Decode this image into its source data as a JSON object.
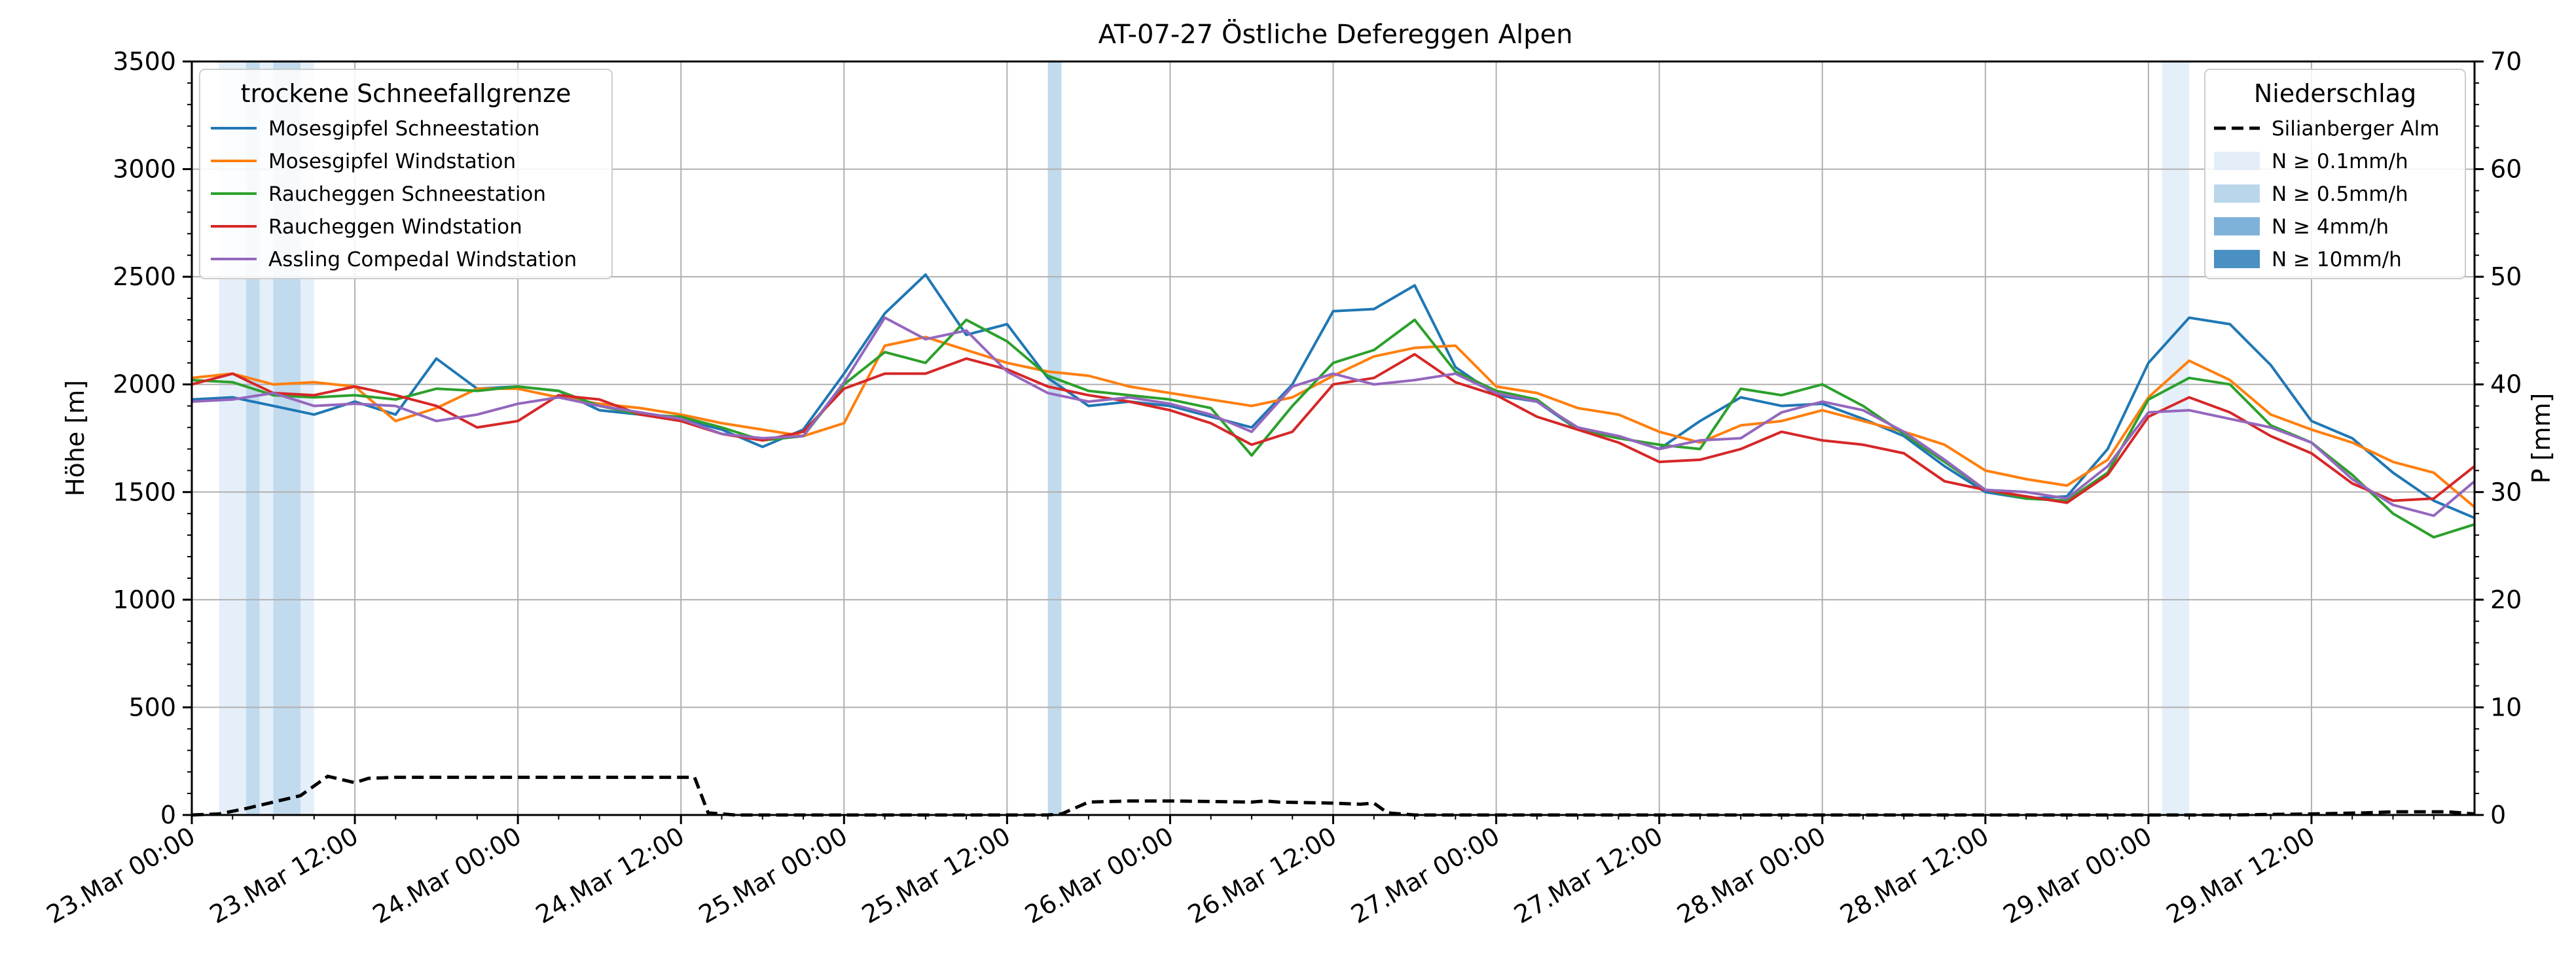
{
  "chart_data": {
    "type": "line",
    "title": "AT-07-27 Östliche Defereggen Alpen",
    "ylabel": "Höhe [m]",
    "ylabel_right": "P [mm]",
    "ylim": [
      0,
      3500
    ],
    "ylim_right": [
      0,
      70
    ],
    "yticks": [
      "0",
      "500",
      "1000",
      "1500",
      "2000",
      "2500",
      "3000",
      "3500"
    ],
    "yticks_right": [
      "0",
      "10",
      "20",
      "30",
      "40",
      "50",
      "60",
      "70"
    ],
    "x_start": "23.Mar 00:00",
    "x_end": "30.Mar 00:00",
    "xticks": [
      "23.Mar 00:00",
      "23.Mar 12:00",
      "24.Mar 00:00",
      "24.Mar 12:00",
      "25.Mar 00:00",
      "25.Mar 12:00",
      "26.Mar 00:00",
      "26.Mar 12:00",
      "27.Mar 00:00",
      "27.Mar 12:00",
      "28.Mar 00:00",
      "28.Mar 12:00",
      "29.Mar 00:00",
      "29.Mar 12:00"
    ],
    "grid": true,
    "legend_left": {
      "title": "trockene Schneefallgrenze",
      "placement": "top-left",
      "entries": [
        "Mosesgipfel Schneestation",
        "Mosesgipfel Windstation",
        "Raucheggen Schneestation",
        "Raucheggen Windstation",
        "Assling Compedal Windstation"
      ]
    },
    "legend_right": {
      "title": "Niederschlag",
      "placement": "top-right",
      "entries": [
        "Silianberger Alm",
        "N ≥ 0.1mm/h",
        "N ≥ 0.5mm/h",
        "N ≥ 4mm/h",
        "N ≥ 10mm/h"
      ],
      "colors": [
        "#000000",
        "#e2edf8",
        "#bad6eb",
        "#7fb2d9",
        "#4a90c2"
      ]
    },
    "series": [
      {
        "name": "Mosesgipfel Schneestation",
        "color": "#1f77b4",
        "hours": [
          0,
          3,
          6,
          9,
          12,
          15,
          18,
          21,
          24,
          27,
          30,
          33,
          36,
          39,
          42,
          45,
          48,
          51,
          54,
          57,
          60,
          63,
          66,
          69,
          72,
          75,
          78,
          81,
          84,
          87,
          90,
          93,
          96,
          99,
          102,
          105,
          108,
          111,
          114,
          117,
          120,
          123,
          126,
          129,
          132,
          135,
          138,
          141,
          144,
          147,
          150,
          153,
          156,
          159,
          162,
          165,
          168
        ],
        "values": [
          1930,
          1940,
          1900,
          1860,
          1920,
          1860,
          2120,
          1980,
          1990,
          1970,
          1880,
          1860,
          1840,
          1790,
          1710,
          1790,
          2050,
          2330,
          2510,
          2230,
          2280,
          2030,
          1900,
          1920,
          1900,
          1850,
          1800,
          2000,
          2340,
          2350,
          2460,
          2080,
          1950,
          1920,
          1790,
          1760,
          1700,
          1830,
          1940,
          1900,
          1910,
          1840,
          1760,
          1620,
          1500,
          1470,
          1480,
          1700,
          2100,
          2310,
          2280,
          2090,
          1830,
          1750,
          1590,
          1460,
          1380
        ]
      },
      {
        "name": "Mosesgipfel Windstation",
        "color": "#ff7f0e",
        "hours": [
          0,
          3,
          6,
          9,
          12,
          15,
          18,
          21,
          24,
          27,
          30,
          33,
          36,
          39,
          42,
          45,
          48,
          51,
          54,
          57,
          60,
          63,
          66,
          69,
          72,
          75,
          78,
          81,
          84,
          87,
          90,
          93,
          96,
          99,
          102,
          105,
          108,
          111,
          114,
          117,
          120,
          123,
          126,
          129,
          132,
          135,
          138,
          141,
          144,
          147,
          150,
          153,
          156,
          159,
          162,
          165,
          168
        ],
        "values": [
          2030,
          2050,
          2000,
          2010,
          1990,
          1830,
          1890,
          1980,
          1980,
          1940,
          1910,
          1890,
          1860,
          1820,
          1790,
          1760,
          1820,
          2180,
          2220,
          2160,
          2100,
          2060,
          2040,
          1990,
          1960,
          1930,
          1900,
          1940,
          2040,
          2130,
          2170,
          2180,
          1990,
          1960,
          1890,
          1860,
          1780,
          1730,
          1810,
          1830,
          1880,
          1830,
          1780,
          1720,
          1600,
          1560,
          1530,
          1650,
          1940,
          2110,
          2020,
          1860,
          1790,
          1730,
          1640,
          1590,
          1430
        ]
      },
      {
        "name": "Raucheggen Schneestation",
        "color": "#2ca02c",
        "hours": [
          0,
          3,
          6,
          9,
          12,
          15,
          18,
          21,
          24,
          27,
          30,
          33,
          36,
          39,
          42,
          45,
          48,
          51,
          54,
          57,
          60,
          63,
          66,
          69,
          72,
          75,
          78,
          81,
          84,
          87,
          90,
          93,
          96,
          99,
          102,
          105,
          108,
          111,
          114,
          117,
          120,
          123,
          126,
          129,
          132,
          135,
          138,
          141,
          144,
          147,
          150,
          153,
          156,
          159,
          162,
          165,
          168
        ],
        "values": [
          2020,
          2010,
          1950,
          1940,
          1950,
          1930,
          1980,
          1970,
          1990,
          1970,
          1900,
          1860,
          1850,
          1800,
          1740,
          1760,
          2000,
          2150,
          2100,
          2300,
          2200,
          2040,
          1970,
          1950,
          1930,
          1890,
          1670,
          1900,
          2100,
          2160,
          2300,
          2060,
          1970,
          1930,
          1790,
          1750,
          1720,
          1700,
          1980,
          1950,
          2000,
          1900,
          1770,
          1640,
          1510,
          1470,
          1460,
          1590,
          1930,
          2030,
          2000,
          1810,
          1730,
          1580,
          1400,
          1290,
          1350
        ]
      },
      {
        "name": "Raucheggen Windstation",
        "color": "#d62728",
        "hours": [
          0,
          3,
          6,
          9,
          12,
          15,
          18,
          21,
          24,
          27,
          30,
          33,
          36,
          39,
          42,
          45,
          48,
          51,
          54,
          57,
          60,
          63,
          66,
          69,
          72,
          75,
          78,
          81,
          84,
          87,
          90,
          93,
          96,
          99,
          102,
          105,
          108,
          111,
          114,
          117,
          120,
          123,
          126,
          129,
          132,
          135,
          138,
          141,
          144,
          147,
          150,
          153,
          156,
          159,
          162,
          165,
          168
        ],
        "values": [
          2000,
          2050,
          1960,
          1950,
          1990,
          1950,
          1900,
          1800,
          1830,
          1950,
          1930,
          1860,
          1830,
          1770,
          1740,
          1780,
          1980,
          2050,
          2050,
          2120,
          2070,
          1990,
          1950,
          1920,
          1880,
          1820,
          1720,
          1780,
          2000,
          2030,
          2140,
          2010,
          1950,
          1850,
          1790,
          1730,
          1640,
          1650,
          1700,
          1780,
          1740,
          1720,
          1680,
          1550,
          1510,
          1480,
          1450,
          1580,
          1850,
          1940,
          1870,
          1760,
          1680,
          1540,
          1460,
          1470,
          1620
        ]
      },
      {
        "name": "Assling Compedal Windstation",
        "color": "#9467bd",
        "hours": [
          0,
          3,
          6,
          9,
          12,
          15,
          18,
          21,
          24,
          27,
          30,
          33,
          36,
          39,
          42,
          45,
          48,
          51,
          54,
          57,
          60,
          63,
          66,
          69,
          72,
          75,
          78,
          81,
          84,
          87,
          90,
          93,
          96,
          99,
          102,
          105,
          108,
          111,
          114,
          117,
          120,
          123,
          126,
          129,
          132,
          135,
          138,
          141,
          144,
          147,
          150,
          153,
          156,
          159,
          162,
          165,
          168
        ],
        "values": [
          1920,
          1930,
          1960,
          1900,
          1910,
          1900,
          1830,
          1860,
          1910,
          1940,
          1900,
          1870,
          1840,
          1770,
          1750,
          1760,
          2010,
          2310,
          2210,
          2250,
          2060,
          1960,
          1920,
          1940,
          1910,
          1860,
          1780,
          1990,
          2050,
          2000,
          2020,
          2050,
          1960,
          1920,
          1800,
          1760,
          1700,
          1740,
          1750,
          1870,
          1920,
          1880,
          1780,
          1650,
          1510,
          1500,
          1470,
          1620,
          1870,
          1880,
          1840,
          1800,
          1730,
          1560,
          1440,
          1390,
          1550
        ]
      }
    ],
    "series_right": [
      {
        "name": "Silianberger Alm",
        "color": "#000000",
        "dash": "dashed",
        "hours": [
          0,
          2,
          4,
          6,
          8,
          10,
          12,
          13,
          15,
          18,
          20,
          31,
          34,
          37,
          38,
          40,
          48,
          54,
          60,
          63,
          64,
          66,
          69,
          72,
          78,
          79,
          80,
          84,
          86,
          87,
          88,
          90,
          96,
          102,
          108,
          114,
          120,
          126,
          132,
          138,
          144,
          150,
          156,
          160,
          162,
          163,
          166,
          168
        ],
        "values": [
          0,
          0.1,
          0.6,
          1.2,
          1.8,
          3.6,
          3.0,
          3.4,
          3.5,
          3.5,
          3.5,
          3.5,
          3.5,
          3.5,
          0.2,
          0,
          0,
          0,
          0,
          0,
          0.1,
          1.2,
          1.3,
          1.3,
          1.2,
          1.3,
          1.2,
          1.1,
          1.0,
          1.1,
          0.2,
          0,
          0,
          0,
          0,
          0,
          0,
          0,
          0,
          0,
          0,
          0,
          0.1,
          0.2,
          0.3,
          0.3,
          0.3,
          0.1
        ]
      }
    ],
    "precip_bands": [
      {
        "start_h": 2,
        "end_h": 4,
        "level": "N ≥ 0.1mm/h"
      },
      {
        "start_h": 4,
        "end_h": 5,
        "level": "N ≥ 0.5mm/h"
      },
      {
        "start_h": 5,
        "end_h": 6,
        "level": "N ≥ 0.1mm/h"
      },
      {
        "start_h": 6,
        "end_h": 8,
        "level": "N ≥ 0.5mm/h"
      },
      {
        "start_h": 8,
        "end_h": 9,
        "level": "N ≥ 0.1mm/h"
      },
      {
        "start_h": 63,
        "end_h": 64,
        "level": "N ≥ 0.5mm/h"
      },
      {
        "start_h": 145,
        "end_h": 147,
        "level": "N ≥ 0.1mm/h"
      }
    ]
  }
}
